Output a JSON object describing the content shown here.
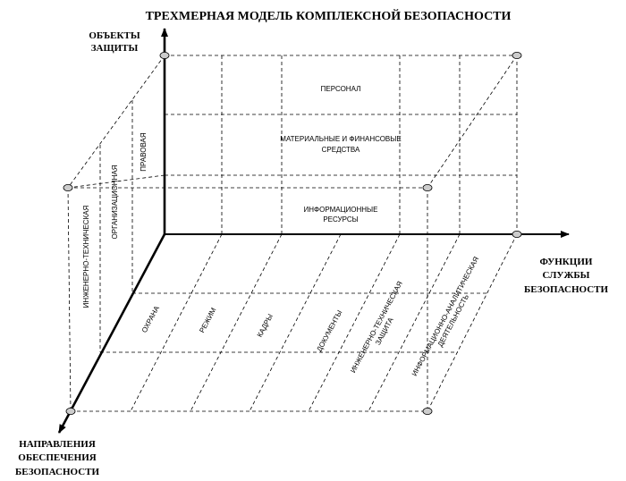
{
  "title": "ТРЕХМЕРНАЯ МОДЕЛЬ КОМПЛЕКСНОЙ БЕЗОПАСНОСТИ",
  "axes": {
    "vertical": [
      "ОБЪЕКТЫ",
      "ЗАЩИТЫ"
    ],
    "right": [
      "ФУНКЦИИ",
      "СЛУЖБЫ",
      "БЕЗОПАСНОСТИ"
    ],
    "diagonal": [
      "НАПРАВЛЕНИЯ",
      "ОБЕСПЕЧЕНИЯ",
      "БЕЗОПАСНОСТИ"
    ]
  },
  "objects": [
    {
      "lines": [
        "ПЕРСОНАЛ"
      ]
    },
    {
      "lines": [
        "МАТЕРИАЛЬНЫЕ И ФИНАНСОВЫЕ",
        "СРЕДСТВА"
      ]
    },
    {
      "lines": [
        "ИНФОРМАЦИОННЫЕ",
        "РЕСУРСЫ"
      ]
    }
  ],
  "directions": [
    {
      "label": "ПРАВОВАЯ"
    },
    {
      "label": "ОРГАНИЗАЦИОННАЯ"
    },
    {
      "label": "ИНЖЕНЕРНО-ТЕХНИЧЕСКАЯ"
    }
  ],
  "functions": [
    {
      "lines": [
        "ОХРАНА"
      ]
    },
    {
      "lines": [
        "РЕЖИМ"
      ]
    },
    {
      "lines": [
        "КАДРЫ"
      ]
    },
    {
      "lines": [
        "ДОКУМЕНТЫ"
      ]
    },
    {
      "lines": [
        "ИНЖЕНЕРНО-ТЕХНИЧЕСКАЯ",
        "ЗАЩИТА"
      ]
    },
    {
      "lines": [
        "ИНФОРМАЦИОННО-АНАЛИТИЧЕСКАЯ",
        "ДЕЯТЕЛЬНОСТЬ"
      ]
    }
  ]
}
